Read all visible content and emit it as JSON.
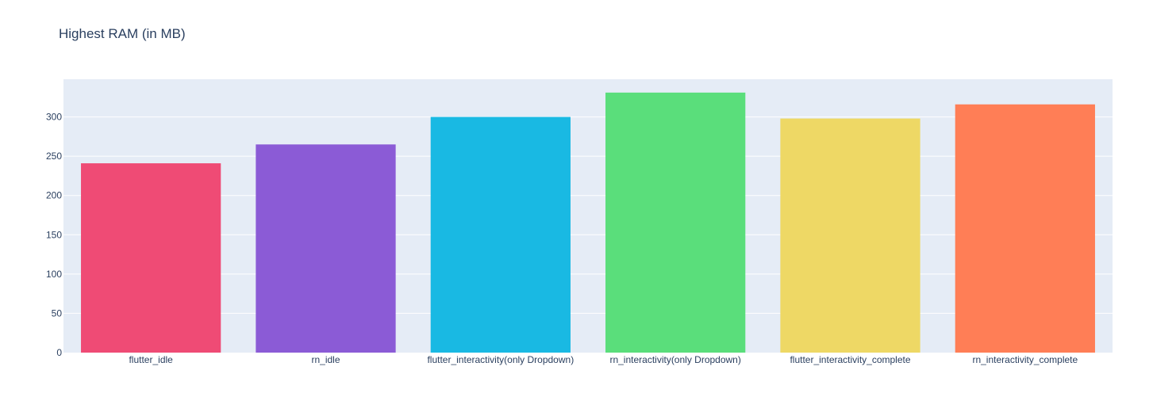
{
  "chart_data": {
    "type": "bar",
    "title": "Highest RAM (in MB)",
    "xlabel": "",
    "ylabel": "",
    "categories": [
      "flutter_idle",
      "rn_idle",
      "flutter_interactivity(only Dropdown)",
      "rn_interactivity(only Dropdown)",
      "flutter_interactivity_complete",
      "rn_interactivity_complete"
    ],
    "values": [
      241,
      265,
      300,
      331,
      298,
      316
    ],
    "colors": [
      "#ef4b75",
      "#8b5bd6",
      "#19b9e3",
      "#5ade7b",
      "#eed865",
      "#ff7e56"
    ],
    "ylim": [
      0,
      348
    ],
    "yticks": [
      0,
      50,
      100,
      150,
      200,
      250,
      300
    ],
    "grid": true,
    "plot_bg": "#e5ecf6",
    "legend": "none"
  }
}
